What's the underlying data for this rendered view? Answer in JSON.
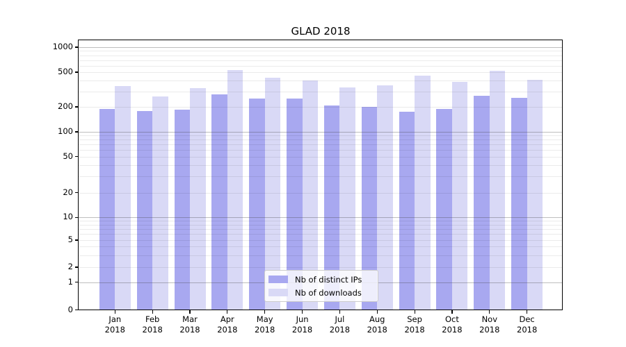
{
  "chart_data": {
    "type": "bar",
    "title": "GLAD 2018",
    "categories": [
      "Jan 2018",
      "Feb 2018",
      "Mar 2018",
      "Apr 2018",
      "May 2018",
      "Jun 2018",
      "Jul 2018",
      "Aug 2018",
      "Sep 2018",
      "Oct 2018",
      "Nov 2018",
      "Dec 2018"
    ],
    "series": [
      {
        "name": "Nb of distinct IPs",
        "color": "#a8a8f0",
        "values": [
          190,
          178,
          184,
          279,
          249,
          250,
          209,
          200,
          176,
          190,
          267,
          254
        ]
      },
      {
        "name": "Nb of downloads",
        "color": "#d9d9f6",
        "values": [
          347,
          264,
          330,
          525,
          430,
          400,
          336,
          353,
          460,
          390,
          520,
          410
        ]
      }
    ],
    "ylabel": "",
    "xlabel": "",
    "yscale": "symlog",
    "y_ticks": [
      1000,
      500,
      200,
      100,
      50,
      20,
      10,
      5,
      2,
      1,
      0
    ],
    "ylim": [
      0,
      1200
    ],
    "grid": true,
    "legend_position": "lower center inside"
  },
  "colors": {
    "grid_major": "rgba(70,70,70,0.35)",
    "grid_minor": "rgba(0,0,0,0.08)",
    "spine": "#000000",
    "tick": "#000000",
    "legend_border": "#cccccc",
    "legend_bg": "rgba(255,255,255,0.8)"
  }
}
